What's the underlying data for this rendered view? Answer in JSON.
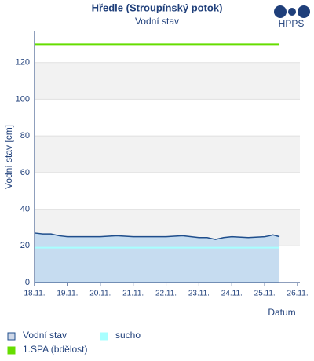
{
  "chart_data": {
    "type": "line",
    "title": "Hředle (Stroupínský potok)",
    "subtitle": "Vodní stav",
    "logo_text": "HPPS",
    "xlabel": "Datum",
    "ylabel": "Vodní stav [cm]",
    "xlim": [
      0,
      8.07
    ],
    "ylim": [
      0,
      137
    ],
    "yticks": [
      0,
      20,
      40,
      60,
      80,
      100,
      120
    ],
    "xticks": [
      {
        "value": 0,
        "label": "18.11."
      },
      {
        "value": 1,
        "label": "19.11."
      },
      {
        "value": 2,
        "label": "20.11."
      },
      {
        "value": 3,
        "label": "21.11."
      },
      {
        "value": 4,
        "label": "22.11."
      },
      {
        "value": 5,
        "label": "23.11."
      },
      {
        "value": 6,
        "label": "24.11."
      },
      {
        "value": 7,
        "label": "25.11."
      },
      {
        "value": 8,
        "label": "26.11."
      }
    ],
    "grid_bands": true,
    "series": [
      {
        "name": "Vodní stav",
        "color": "#1f4e8c",
        "fill": "#c6dcf0",
        "x": [
          0,
          0.25,
          0.5,
          0.75,
          1,
          1.5,
          2,
          2.5,
          3,
          3.5,
          4,
          4.5,
          5,
          5.25,
          5.5,
          5.75,
          6,
          6.5,
          7,
          7.15,
          7.25,
          7.45
        ],
        "values": [
          27,
          26.5,
          26.5,
          25.5,
          25,
          25,
          25,
          25.5,
          25,
          25,
          25,
          25.5,
          24.5,
          24.5,
          23.5,
          24.5,
          25,
          24.5,
          25,
          25.5,
          26,
          25
        ]
      }
    ],
    "thresholds": [
      {
        "name": "sucho",
        "color": "#a8ffff",
        "value": 19
      },
      {
        "name": "1.SPA (bdělost)",
        "color": "#66dd00",
        "value": 130
      }
    ]
  }
}
